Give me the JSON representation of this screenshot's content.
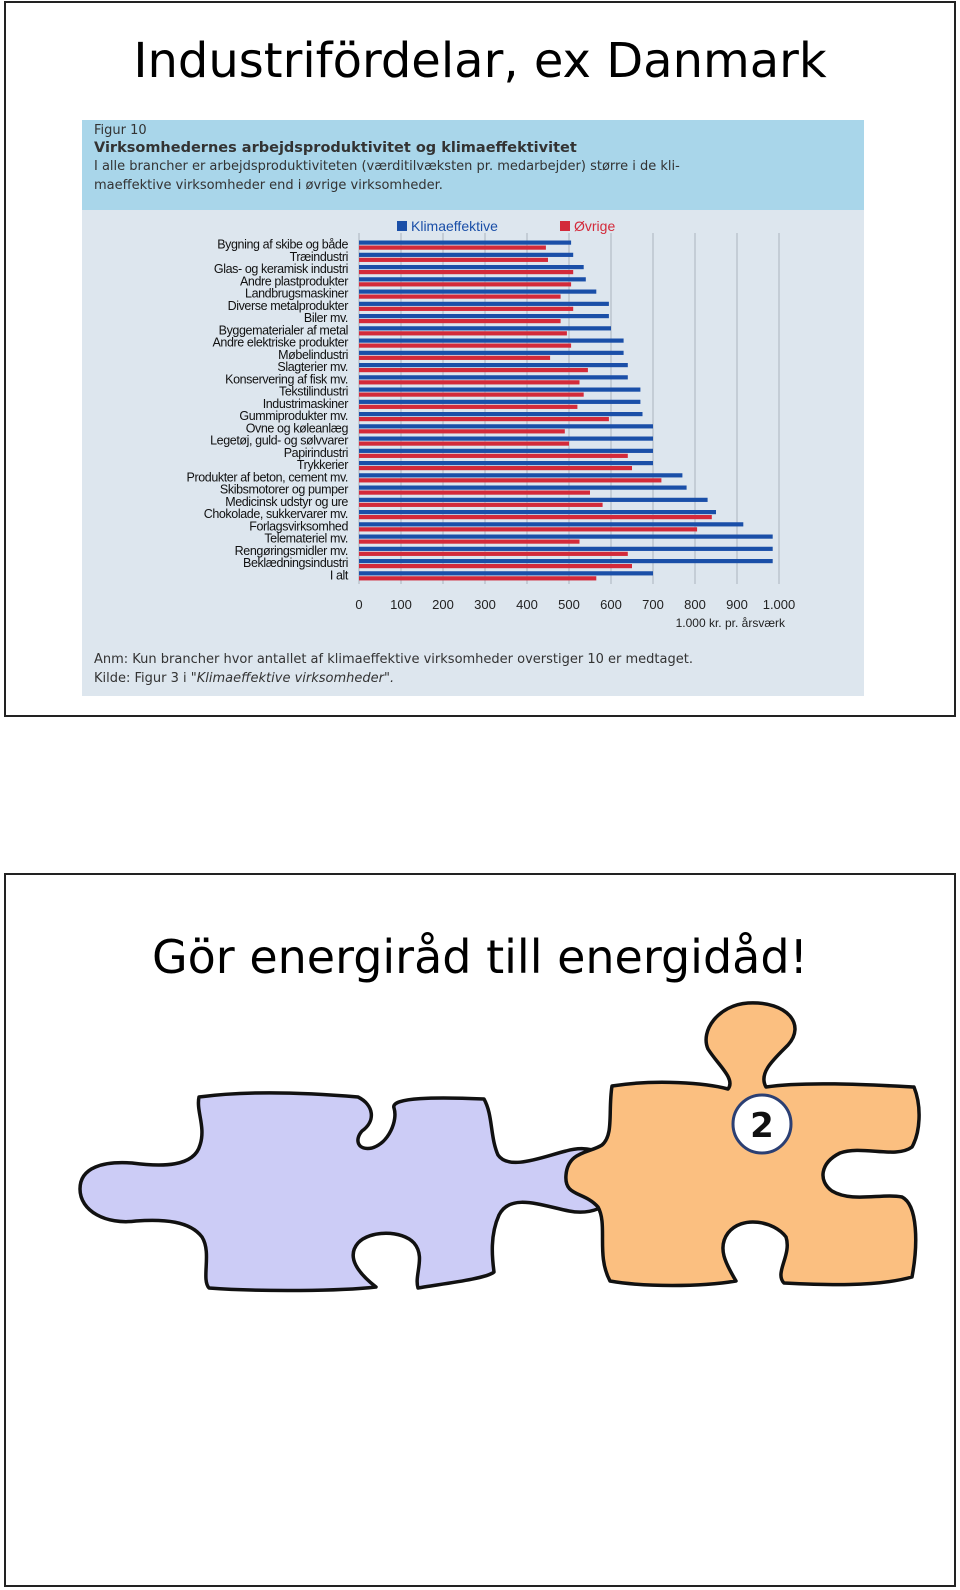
{
  "slide1": {
    "title": "Industrifördelar, ex Danmark",
    "figure": {
      "label": "Figur 10",
      "title": "Virksomhedernes arbejdsproduktivitet og klimaeffektivitet",
      "subtitle_line1": "I alle brancher er arbejdsproduktiviteten (værditilvæksten pr. medarbejder) større i de kli-",
      "subtitle_line2": "maeffektive virksomheder end i øvrige virksomheder.",
      "note": "Anm: Kun brancher hvor antallet af klimaeffektive virksomheder overstiger 10 er medtaget.",
      "source_prefix": "Kilde: Figur 3 i ",
      "source_italic": "\"Klimaeffektive virksomheder\"."
    }
  },
  "chart_data": {
    "type": "bar",
    "orientation": "horizontal",
    "categories": [
      "Bygning af skibe og både",
      "Træindustri",
      "Glas- og keramisk industri",
      "Andre plastprodukter",
      "Landbrugsmaskiner",
      "Diverse metalprodukter",
      "Biler mv.",
      "Byggematerialer af metal",
      "Andre elektriske produkter",
      "Møbelindustri",
      "Slagterier mv.",
      "Konservering af fisk mv.",
      "Tekstilindustri",
      "Industrimaskiner",
      "Gummiprodukter mv.",
      "Ovne og køleanlæg",
      "Legetøj, guld- og sølvvarer",
      "Papirindustri",
      "Trykkerier",
      "Produkter af beton, cement mv.",
      "Skibsmotorer og pumper",
      "Medicinsk udstyr og ure",
      "Chokolade, sukkervarer mv.",
      "Forlagsvirksomhed",
      "Telemateriel mv.",
      "Rengøringsmidler mv.",
      "Beklædningsindustri",
      "I alt"
    ],
    "series": [
      {
        "name": "Klimaeffektive",
        "color": "#1a4fa8",
        "values": [
          505,
          510,
          535,
          540,
          565,
          595,
          595,
          600,
          630,
          630,
          640,
          640,
          670,
          670,
          675,
          700,
          700,
          700,
          700,
          770,
          780,
          830,
          850,
          915,
          985,
          985,
          985,
          700
        ]
      },
      {
        "name": "Øvrige",
        "color": "#d32a3a",
        "values": [
          445,
          450,
          510,
          505,
          480,
          510,
          480,
          495,
          505,
          455,
          545,
          525,
          535,
          520,
          595,
          490,
          500,
          640,
          650,
          720,
          550,
          580,
          840,
          805,
          525,
          640,
          650,
          565
        ]
      }
    ],
    "xlim": [
      0,
      1000
    ],
    "xticks": [
      "0",
      "100",
      "200",
      "300",
      "400",
      "500",
      "600",
      "700",
      "800",
      "900",
      "1.000"
    ],
    "xlabel": "1.000 kr. pr. årsværk",
    "legend_position": "top",
    "grid": true
  },
  "slide2": {
    "title": "Gör energiråd till energidåd!",
    "badge_number": "2",
    "piece_colors": {
      "left": "#ccccf6",
      "right": "#fbbf80"
    }
  }
}
